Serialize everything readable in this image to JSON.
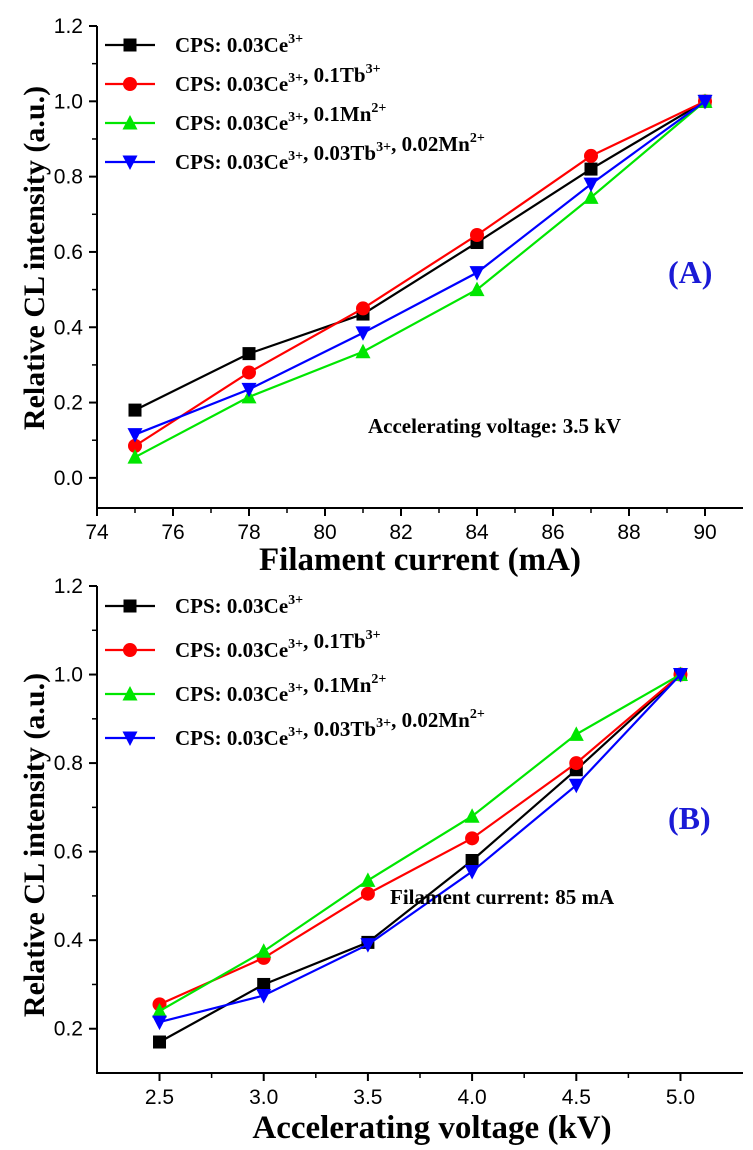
{
  "chart_data": [
    {
      "type": "line",
      "panel_label": "(A)",
      "panel_label_color": "#1a1ad6",
      "xlabel": "Filament current (mA)",
      "ylabel": "Relative CL intensity (a.u.)",
      "xlim": [
        74,
        91
      ],
      "ylim": [
        -0.08,
        1.2
      ],
      "x_ticks": [
        74,
        76,
        78,
        80,
        82,
        84,
        86,
        88,
        90
      ],
      "y_ticks": [
        0.0,
        0.2,
        0.4,
        0.6,
        0.8,
        1.0,
        1.2
      ],
      "x_tick_decimals": 0,
      "y_tick_decimals": 1,
      "annotation": "Accelerating voltage: 3.5 kV",
      "legend_position": "top-left",
      "grid": false,
      "x": [
        75,
        78,
        81,
        84,
        87,
        90
      ],
      "series": [
        {
          "base": "CPS: 0.03Ce",
          "sup1": "3+",
          "mid": "",
          "sup2": "",
          "mid2": "",
          "sup3": "",
          "color": "#000000",
          "marker": "square",
          "values": [
            0.18,
            0.33,
            0.435,
            0.625,
            0.82,
            1.0
          ]
        },
        {
          "base": "CPS: 0.03Ce",
          "sup1": "3+",
          "mid": ", 0.1Tb",
          "sup2": "3+",
          "mid2": "",
          "sup3": "",
          "color": "#ff0000",
          "marker": "circle",
          "values": [
            0.085,
            0.28,
            0.45,
            0.645,
            0.855,
            1.0
          ]
        },
        {
          "base": "CPS: 0.03Ce",
          "sup1": "3+",
          "mid": ", 0.1Mn",
          "sup2": "2+",
          "mid2": "",
          "sup3": "",
          "color": "#00e600",
          "marker": "triangle-up",
          "values": [
            0.055,
            0.215,
            0.335,
            0.5,
            0.745,
            1.0
          ]
        },
        {
          "base": "CPS: 0.03Ce",
          "sup1": "3+",
          "mid": ", 0.03Tb",
          "sup2": "3+",
          "mid2": ", 0.02Mn",
          "sup3": "2+",
          "color": "#0000ff",
          "marker": "triangle-down",
          "values": [
            0.115,
            0.235,
            0.385,
            0.545,
            0.78,
            1.0
          ]
        }
      ]
    },
    {
      "type": "line",
      "panel_label": "(B)",
      "panel_label_color": "#1a1ad6",
      "xlabel": "Accelerating voltage (kV)",
      "ylabel": "Relative CL intensity (a.u.)",
      "xlim": [
        2.2,
        5.3
      ],
      "ylim": [
        0.1,
        1.2
      ],
      "x_ticks": [
        2.5,
        3.0,
        3.5,
        4.0,
        4.5,
        5.0
      ],
      "y_ticks": [
        0.2,
        0.4,
        0.6,
        0.8,
        1.0,
        1.2
      ],
      "x_tick_decimals": 1,
      "y_tick_decimals": 1,
      "annotation": "Filament current: 85 mA",
      "legend_position": "top-left",
      "grid": false,
      "x": [
        2.5,
        3.0,
        3.5,
        4.0,
        4.5,
        5.0
      ],
      "series": [
        {
          "base": "CPS: 0.03Ce",
          "sup1": "3+",
          "mid": "",
          "sup2": "",
          "mid2": "",
          "sup3": "",
          "color": "#000000",
          "marker": "square",
          "values": [
            0.17,
            0.3,
            0.395,
            0.58,
            0.785,
            1.0
          ]
        },
        {
          "base": "CPS: 0.03Ce",
          "sup1": "3+",
          "mid": ", 0.1Tb",
          "sup2": "3+",
          "mid2": "",
          "sup3": "",
          "color": "#ff0000",
          "marker": "circle",
          "values": [
            0.255,
            0.36,
            0.505,
            0.63,
            0.8,
            1.0
          ]
        },
        {
          "base": "CPS: 0.03Ce",
          "sup1": "3+",
          "mid": ", 0.1Mn",
          "sup2": "2+",
          "mid2": "",
          "sup3": "",
          "color": "#00e600",
          "marker": "triangle-up",
          "values": [
            0.24,
            0.375,
            0.535,
            0.68,
            0.865,
            1.0
          ]
        },
        {
          "base": "CPS: 0.03Ce",
          "sup1": "3+",
          "mid": ", 0.03Tb",
          "sup2": "3+",
          "mid2": ", 0.02Mn",
          "sup3": "2+",
          "color": "#0000ff",
          "marker": "triangle-down",
          "values": [
            0.215,
            0.275,
            0.39,
            0.555,
            0.75,
            1.0
          ]
        }
      ]
    }
  ]
}
